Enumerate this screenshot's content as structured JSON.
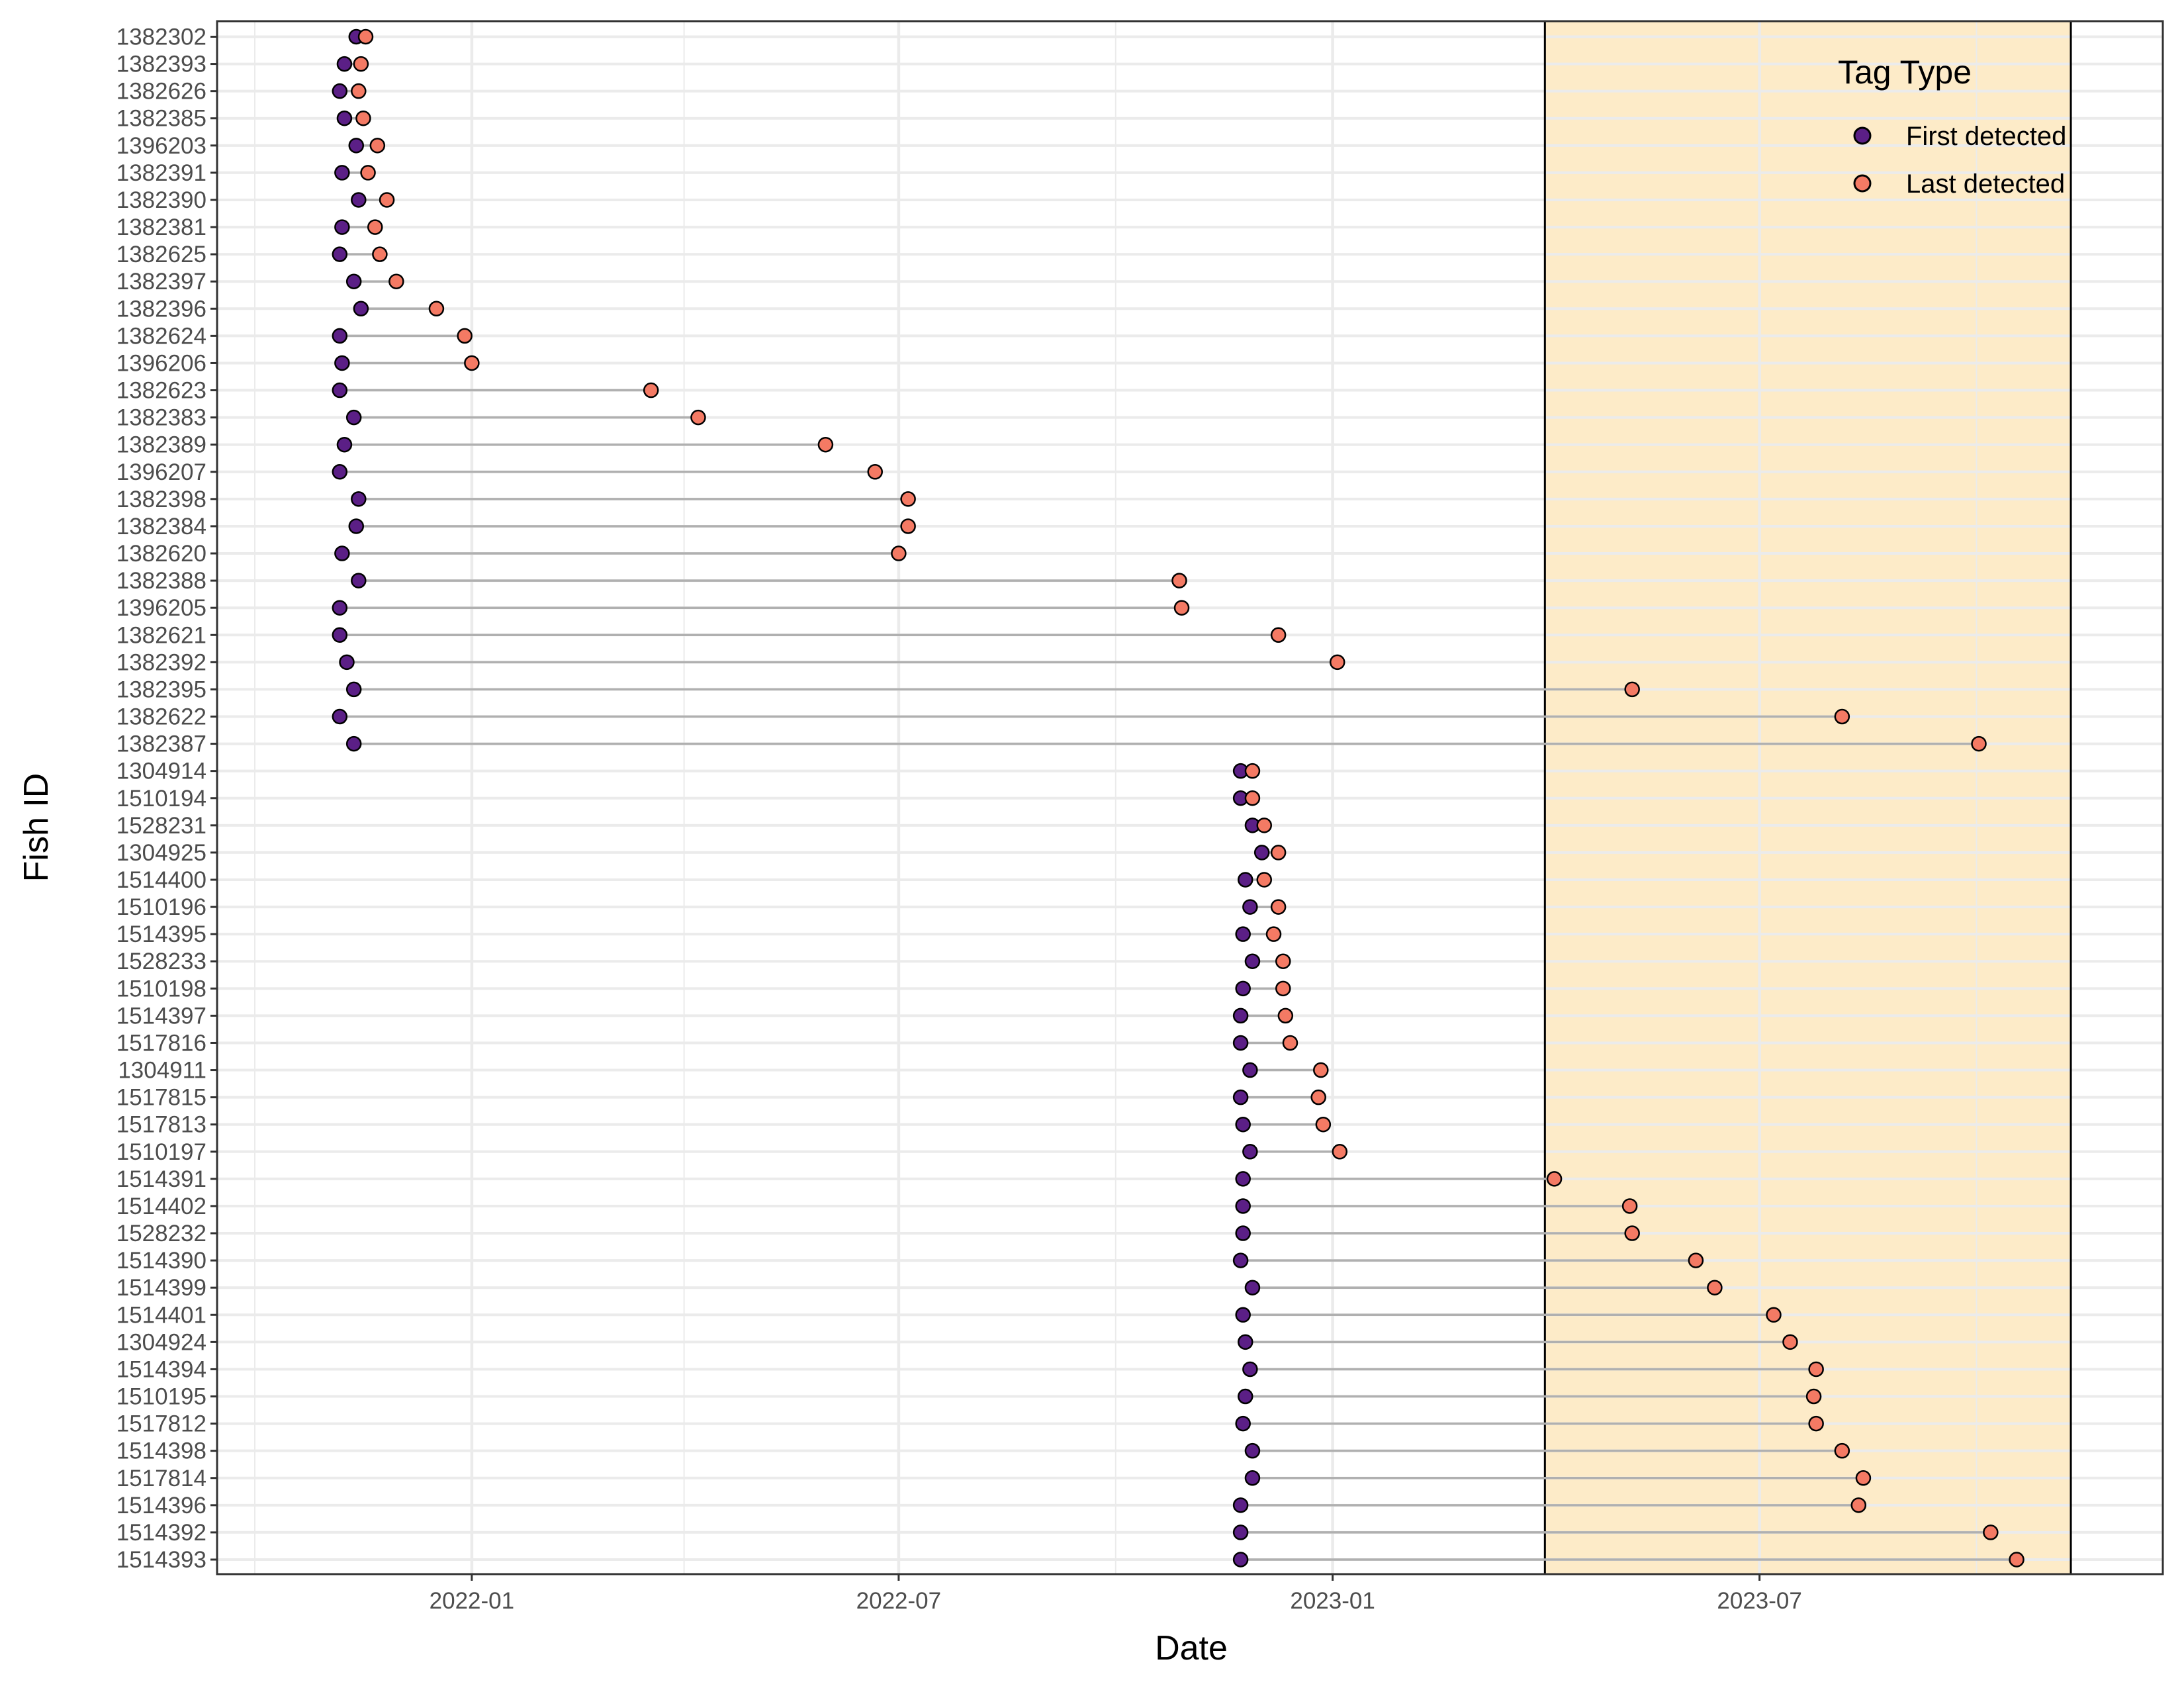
{
  "chart_data": {
    "type": "scatter",
    "subtype": "dumbbell",
    "xlabel": "Date",
    "ylabel": "Fish ID",
    "x_ticks": [
      "2022-01",
      "2022-07",
      "2023-01",
      "2023-07"
    ],
    "xlim": [
      "2021-09-15",
      "2023-12-19"
    ],
    "highlight_period": {
      "start": "2023-04-01",
      "end": "2023-11-10",
      "fill": "#fdebc8"
    },
    "legend": {
      "title": "Tag Type",
      "position": "top-right",
      "entries": [
        {
          "label": "First detected",
          "color": "#5b1f86"
        },
        {
          "label": "Last detected",
          "color": "#f47a64"
        }
      ]
    },
    "grid": true,
    "fish": [
      {
        "id": "1382302",
        "first": "2021-11-13",
        "last": "2021-11-17"
      },
      {
        "id": "1382393",
        "first": "2021-11-08",
        "last": "2021-11-15"
      },
      {
        "id": "1382626",
        "first": "2021-11-06",
        "last": "2021-11-14"
      },
      {
        "id": "1382385",
        "first": "2021-11-08",
        "last": "2021-11-16"
      },
      {
        "id": "1396203",
        "first": "2021-11-13",
        "last": "2021-11-22"
      },
      {
        "id": "1382391",
        "first": "2021-11-07",
        "last": "2021-11-18"
      },
      {
        "id": "1382390",
        "first": "2021-11-14",
        "last": "2021-11-26"
      },
      {
        "id": "1382381",
        "first": "2021-11-07",
        "last": "2021-11-21"
      },
      {
        "id": "1382625",
        "first": "2021-11-06",
        "last": "2021-11-23"
      },
      {
        "id": "1382397",
        "first": "2021-11-12",
        "last": "2021-11-30"
      },
      {
        "id": "1382396",
        "first": "2021-11-15",
        "last": "2021-12-17"
      },
      {
        "id": "1382624",
        "first": "2021-11-06",
        "last": "2021-12-29"
      },
      {
        "id": "1396206",
        "first": "2021-11-07",
        "last": "2022-01-01"
      },
      {
        "id": "1382623",
        "first": "2021-11-06",
        "last": "2022-03-18"
      },
      {
        "id": "1382383",
        "first": "2021-11-12",
        "last": "2022-04-07"
      },
      {
        "id": "1382389",
        "first": "2021-11-08",
        "last": "2022-05-31"
      },
      {
        "id": "1396207",
        "first": "2021-11-06",
        "last": "2022-06-21"
      },
      {
        "id": "1382398",
        "first": "2021-11-14",
        "last": "2022-07-05"
      },
      {
        "id": "1382384",
        "first": "2021-11-13",
        "last": "2022-07-05"
      },
      {
        "id": "1382620",
        "first": "2021-11-07",
        "last": "2022-07-01"
      },
      {
        "id": "1382388",
        "first": "2021-11-14",
        "last": "2022-10-28"
      },
      {
        "id": "1396205",
        "first": "2021-11-06",
        "last": "2022-10-29"
      },
      {
        "id": "1382621",
        "first": "2021-11-06",
        "last": "2022-12-09"
      },
      {
        "id": "1382392",
        "first": "2021-11-09",
        "last": "2023-01-03"
      },
      {
        "id": "1382395",
        "first": "2021-11-12",
        "last": "2023-05-08"
      },
      {
        "id": "1382622",
        "first": "2021-11-06",
        "last": "2023-08-05"
      },
      {
        "id": "1382387",
        "first": "2021-11-12",
        "last": "2023-10-02"
      },
      {
        "id": "1304914",
        "first": "2022-11-23",
        "last": "2022-11-28"
      },
      {
        "id": "1510194",
        "first": "2022-11-23",
        "last": "2022-11-28"
      },
      {
        "id": "1528231",
        "first": "2022-11-28",
        "last": "2022-12-03"
      },
      {
        "id": "1304925",
        "first": "2022-12-02",
        "last": "2022-12-09"
      },
      {
        "id": "1514400",
        "first": "2022-11-25",
        "last": "2022-12-03"
      },
      {
        "id": "1510196",
        "first": "2022-11-27",
        "last": "2022-12-09"
      },
      {
        "id": "1514395",
        "first": "2022-11-24",
        "last": "2022-12-07"
      },
      {
        "id": "1528233",
        "first": "2022-11-28",
        "last": "2022-12-11"
      },
      {
        "id": "1510198",
        "first": "2022-11-24",
        "last": "2022-12-11"
      },
      {
        "id": "1514397",
        "first": "2022-11-23",
        "last": "2022-12-12"
      },
      {
        "id": "1517816",
        "first": "2022-11-23",
        "last": "2022-12-14"
      },
      {
        "id": "1304911",
        "first": "2022-11-27",
        "last": "2022-12-27"
      },
      {
        "id": "1517815",
        "first": "2022-11-23",
        "last": "2022-12-26"
      },
      {
        "id": "1517813",
        "first": "2022-11-24",
        "last": "2022-12-28"
      },
      {
        "id": "1510197",
        "first": "2022-11-27",
        "last": "2023-01-04"
      },
      {
        "id": "1514391",
        "first": "2022-11-24",
        "last": "2023-04-05"
      },
      {
        "id": "1514402",
        "first": "2022-11-24",
        "last": "2023-05-07"
      },
      {
        "id": "1528232",
        "first": "2022-11-24",
        "last": "2023-05-08"
      },
      {
        "id": "1514390",
        "first": "2022-11-23",
        "last": "2023-06-04"
      },
      {
        "id": "1514399",
        "first": "2022-11-28",
        "last": "2023-06-12"
      },
      {
        "id": "1514401",
        "first": "2022-11-24",
        "last": "2023-07-07"
      },
      {
        "id": "1304924",
        "first": "2022-11-25",
        "last": "2023-07-14"
      },
      {
        "id": "1514394",
        "first": "2022-11-27",
        "last": "2023-07-25"
      },
      {
        "id": "1510195",
        "first": "2022-11-25",
        "last": "2023-07-24"
      },
      {
        "id": "1517812",
        "first": "2022-11-24",
        "last": "2023-07-25"
      },
      {
        "id": "1514398",
        "first": "2022-11-28",
        "last": "2023-08-05"
      },
      {
        "id": "1517814",
        "first": "2022-11-28",
        "last": "2023-08-14"
      },
      {
        "id": "1514396",
        "first": "2022-11-23",
        "last": "2023-08-12"
      },
      {
        "id": "1514392",
        "first": "2022-11-23",
        "last": "2023-10-07"
      },
      {
        "id": "1514393",
        "first": "2022-11-23",
        "last": "2023-10-18"
      }
    ]
  }
}
